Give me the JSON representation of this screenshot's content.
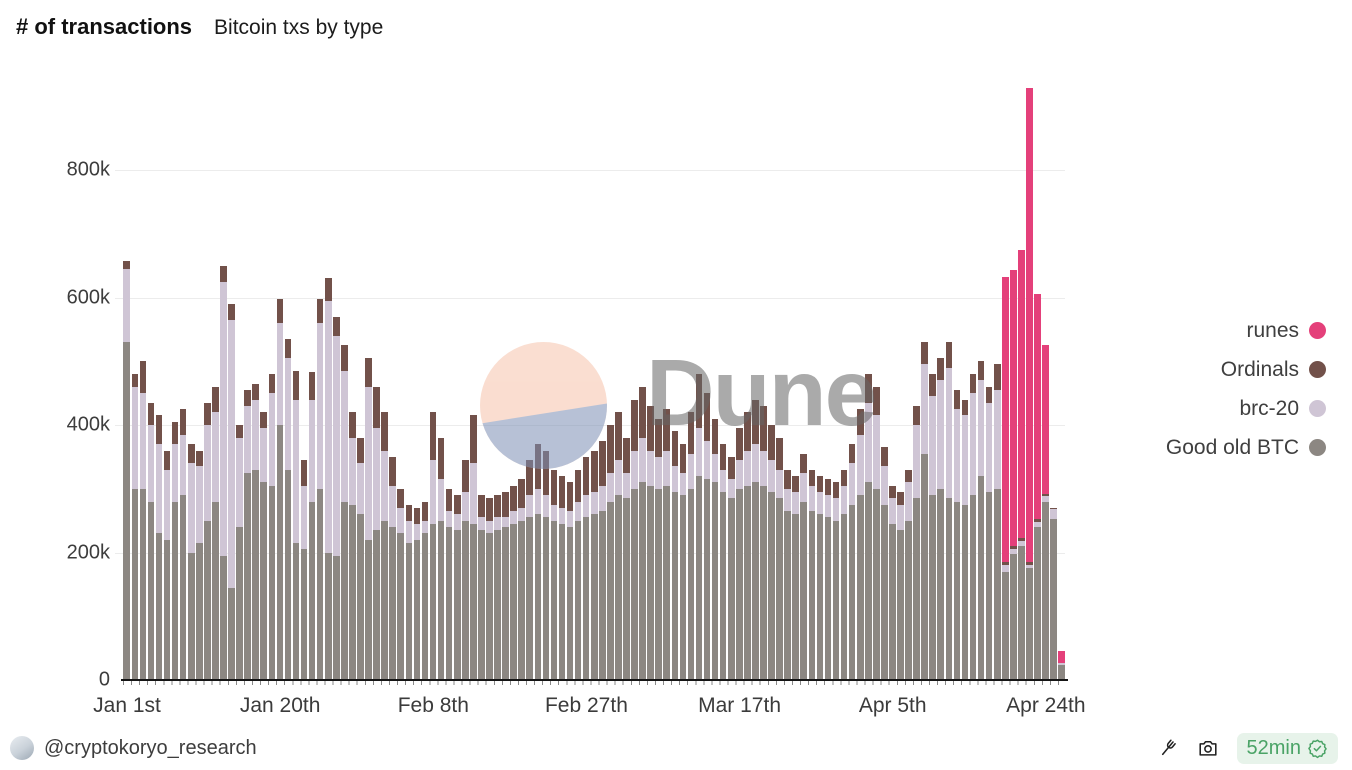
{
  "header": {
    "title": "# of transactions",
    "subtitle": "Bitcoin txs by type"
  },
  "legend": {
    "items": [
      {
        "label": "runes",
        "color": "#e4407a"
      },
      {
        "label": "Ordinals",
        "color": "#72514a"
      },
      {
        "label": "brc-20",
        "color": "#cfc5d5"
      },
      {
        "label": "Good old BTC",
        "color": "#8c8782"
      }
    ]
  },
  "watermark": {
    "text": "Dune"
  },
  "footer": {
    "handle": "@cryptokoryo_research",
    "refresh_age": "52min",
    "icons": [
      "fork-icon",
      "camera-icon",
      "verified-badge-icon"
    ]
  },
  "chart_data": {
    "type": "bar",
    "stacked": true,
    "title": "# of transactions",
    "subtitle": "Bitcoin txs by type",
    "unit": "thousands of transactions (k)",
    "grid": "horizontal",
    "legend_position": "right",
    "ylim": [
      0,
      800
    ],
    "y_ticks": [
      {
        "value": 0,
        "label": "0"
      },
      {
        "value": 200,
        "label": "200k"
      },
      {
        "value": 400,
        "label": "400k"
      },
      {
        "value": 600,
        "label": "600k"
      },
      {
        "value": 800,
        "label": "800k"
      }
    ],
    "x_ticks": [
      {
        "index": 0,
        "label": "Jan 1st"
      },
      {
        "index": 19,
        "label": "Jan 20th"
      },
      {
        "index": 38,
        "label": "Feb 8th"
      },
      {
        "index": 57,
        "label": "Feb 27th"
      },
      {
        "index": 76,
        "label": "Mar 17th"
      },
      {
        "index": 95,
        "label": "Apr 5th"
      },
      {
        "index": 114,
        "label": "Apr 24th"
      }
    ],
    "categories": [
      "Jan 1",
      "Jan 2",
      "Jan 3",
      "Jan 4",
      "Jan 5",
      "Jan 6",
      "Jan 7",
      "Jan 8",
      "Jan 9",
      "Jan 10",
      "Jan 11",
      "Jan 12",
      "Jan 13",
      "Jan 14",
      "Jan 15",
      "Jan 16",
      "Jan 17",
      "Jan 18",
      "Jan 19",
      "Jan 20",
      "Jan 21",
      "Jan 22",
      "Jan 23",
      "Jan 24",
      "Jan 25",
      "Jan 26",
      "Jan 27",
      "Jan 28",
      "Jan 29",
      "Jan 30",
      "Jan 31",
      "Feb 1",
      "Feb 2",
      "Feb 3",
      "Feb 4",
      "Feb 5",
      "Feb 6",
      "Feb 7",
      "Feb 8",
      "Feb 9",
      "Feb 10",
      "Feb 11",
      "Feb 12",
      "Feb 13",
      "Feb 14",
      "Feb 15",
      "Feb 16",
      "Feb 17",
      "Feb 18",
      "Feb 19",
      "Feb 20",
      "Feb 21",
      "Feb 22",
      "Feb 23",
      "Feb 24",
      "Feb 25",
      "Feb 26",
      "Feb 27",
      "Feb 28",
      "Feb 29",
      "Mar 1",
      "Mar 2",
      "Mar 3",
      "Mar 4",
      "Mar 5",
      "Mar 6",
      "Mar 7",
      "Mar 8",
      "Mar 9",
      "Mar 10",
      "Mar 11",
      "Mar 12",
      "Mar 13",
      "Mar 14",
      "Mar 15",
      "Mar 16",
      "Mar 17",
      "Mar 18",
      "Mar 19",
      "Mar 20",
      "Mar 21",
      "Mar 22",
      "Mar 23",
      "Mar 24",
      "Mar 25",
      "Mar 26",
      "Mar 27",
      "Mar 28",
      "Mar 29",
      "Mar 30",
      "Mar 31",
      "Apr 1",
      "Apr 2",
      "Apr 3",
      "Apr 4",
      "Apr 5",
      "Apr 6",
      "Apr 7",
      "Apr 8",
      "Apr 9",
      "Apr 10",
      "Apr 11",
      "Apr 12",
      "Apr 13",
      "Apr 14",
      "Apr 15",
      "Apr 16",
      "Apr 17",
      "Apr 18",
      "Apr 19",
      "Apr 20",
      "Apr 21",
      "Apr 22",
      "Apr 23",
      "Apr 24",
      "Apr 25",
      "Apr 26"
    ],
    "series": [
      {
        "name": "Good old BTC",
        "color": "#8c8782",
        "values": [
          530,
          300,
          300,
          280,
          230,
          220,
          280,
          290,
          200,
          215,
          250,
          280,
          195,
          145,
          240,
          325,
          330,
          310,
          305,
          400,
          330,
          215,
          205,
          280,
          300,
          200,
          195,
          280,
          275,
          260,
          220,
          235,
          250,
          240,
          230,
          215,
          220,
          230,
          245,
          250,
          240,
          235,
          250,
          245,
          235,
          230,
          235,
          240,
          245,
          250,
          255,
          260,
          255,
          250,
          245,
          240,
          250,
          255,
          260,
          265,
          280,
          290,
          285,
          300,
          310,
          305,
          300,
          305,
          295,
          290,
          300,
          320,
          315,
          310,
          295,
          285,
          300,
          305,
          310,
          305,
          295,
          285,
          265,
          260,
          280,
          265,
          260,
          255,
          250,
          260,
          275,
          290,
          310,
          300,
          275,
          245,
          235,
          250,
          285,
          355,
          290,
          300,
          285,
          280,
          275,
          290,
          320,
          295,
          300,
          170,
          198,
          210,
          175,
          240,
          280,
          252,
          24
        ]
      },
      {
        "name": "brc-20",
        "color": "#cfc5d5",
        "values": [
          115,
          160,
          150,
          120,
          140,
          110,
          90,
          95,
          140,
          120,
          150,
          140,
          430,
          420,
          140,
          105,
          110,
          85,
          145,
          160,
          175,
          225,
          100,
          160,
          260,
          395,
          345,
          205,
          105,
          80,
          240,
          160,
          110,
          65,
          40,
          35,
          25,
          20,
          100,
          65,
          25,
          25,
          45,
          95,
          20,
          20,
          20,
          15,
          20,
          20,
          35,
          40,
          35,
          25,
          25,
          25,
          30,
          35,
          35,
          40,
          45,
          55,
          40,
          60,
          70,
          55,
          50,
          55,
          40,
          35,
          55,
          75,
          60,
          45,
          35,
          30,
          45,
          55,
          60,
          55,
          50,
          45,
          35,
          35,
          45,
          40,
          35,
          35,
          35,
          45,
          65,
          95,
          125,
          115,
          60,
          40,
          40,
          60,
          115,
          140,
          155,
          170,
          205,
          145,
          140,
          160,
          150,
          140,
          155,
          10,
          8,
          8,
          6,
          8,
          8,
          16,
          2
        ]
      },
      {
        "name": "Ordinals",
        "color": "#72514a",
        "values": [
          12,
          20,
          50,
          35,
          45,
          30,
          35,
          40,
          30,
          25,
          35,
          40,
          25,
          25,
          20,
          25,
          25,
          25,
          30,
          37,
          30,
          45,
          40,
          43,
          37,
          35,
          30,
          40,
          40,
          40,
          45,
          65,
          60,
          45,
          30,
          25,
          25,
          30,
          75,
          65,
          35,
          30,
          50,
          75,
          35,
          35,
          35,
          40,
          40,
          45,
          55,
          70,
          70,
          55,
          50,
          45,
          50,
          60,
          65,
          70,
          75,
          75,
          55,
          80,
          80,
          70,
          60,
          65,
          55,
          45,
          65,
          85,
          75,
          55,
          40,
          35,
          50,
          60,
          70,
          70,
          55,
          50,
          30,
          25,
          30,
          25,
          25,
          25,
          25,
          25,
          30,
          40,
          45,
          45,
          30,
          20,
          20,
          20,
          30,
          35,
          35,
          35,
          40,
          30,
          25,
          30,
          30,
          25,
          40,
          5,
          4,
          4,
          4,
          4,
          4,
          2,
          0
        ]
      },
      {
        "name": "runes",
        "color": "#e4407a",
        "values": [
          0,
          0,
          0,
          0,
          0,
          0,
          0,
          0,
          0,
          0,
          0,
          0,
          0,
          0,
          0,
          0,
          0,
          0,
          0,
          0,
          0,
          0,
          0,
          0,
          0,
          0,
          0,
          0,
          0,
          0,
          0,
          0,
          0,
          0,
          0,
          0,
          0,
          0,
          0,
          0,
          0,
          0,
          0,
          0,
          0,
          0,
          0,
          0,
          0,
          0,
          0,
          0,
          0,
          0,
          0,
          0,
          0,
          0,
          0,
          0,
          0,
          0,
          0,
          0,
          0,
          0,
          0,
          0,
          0,
          0,
          0,
          0,
          0,
          0,
          0,
          0,
          0,
          0,
          0,
          0,
          0,
          0,
          0,
          0,
          0,
          0,
          0,
          0,
          0,
          0,
          0,
          0,
          0,
          0,
          0,
          0,
          0,
          0,
          0,
          0,
          0,
          0,
          0,
          0,
          0,
          0,
          0,
          0,
          0,
          447,
          433,
          452,
          744,
          353,
          233,
          0,
          19
        ]
      }
    ]
  }
}
